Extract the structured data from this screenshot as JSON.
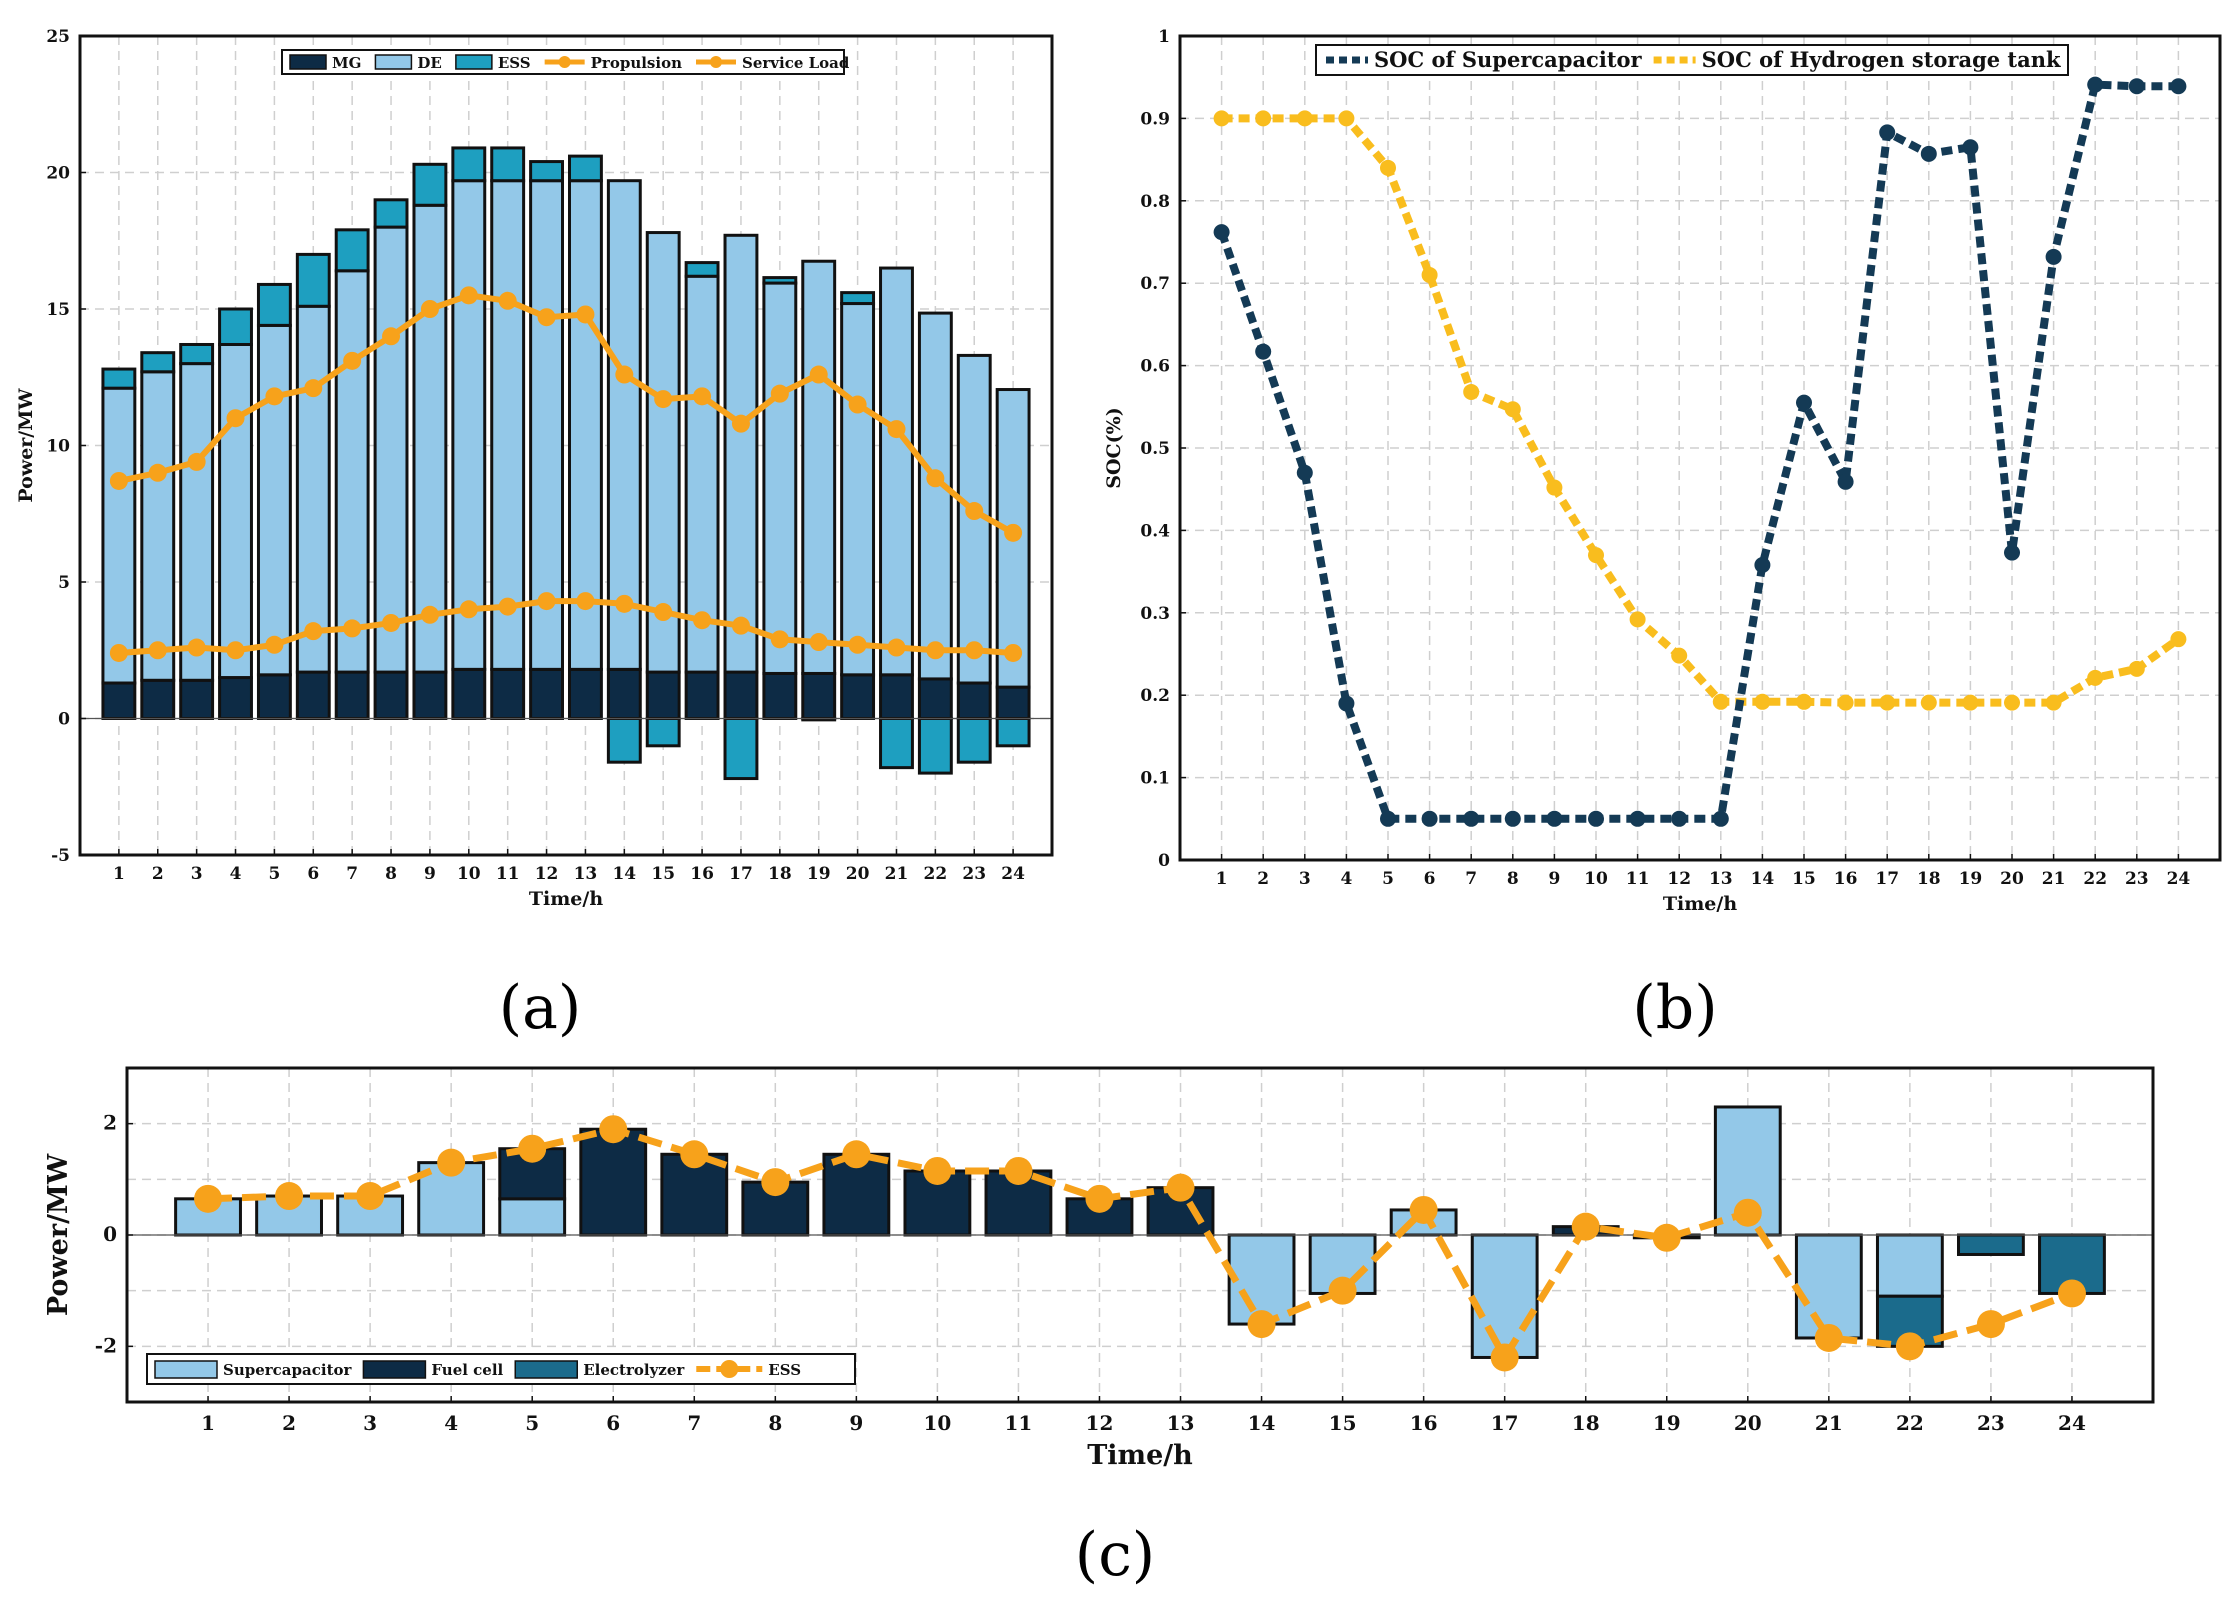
{
  "colors": {
    "mg": "#0d2b45",
    "de": "#93c8e8",
    "ess": "#1e9fc0",
    "orange": "#f7a21b",
    "soc_sc": "#143a55",
    "soc_h2": "#f9bd1e",
    "supercap": "#93c8e8",
    "fuelcell": "#0d2b45",
    "electrolyzer": "#1b6b8c"
  },
  "chart_data": [
    {
      "id": "a",
      "panel_label": "(a)",
      "type": "bar",
      "stacked": true,
      "xlabel": "Time/h",
      "ylabel": "Power/MW",
      "ylim": [
        -5,
        25
      ],
      "yticks": [
        -5,
        0,
        5,
        10,
        15,
        20,
        25
      ],
      "categories": [
        "1",
        "2",
        "3",
        "4",
        "5",
        "6",
        "7",
        "8",
        "9",
        "10",
        "11",
        "12",
        "13",
        "14",
        "15",
        "16",
        "17",
        "18",
        "19",
        "20",
        "21",
        "22",
        "23",
        "24"
      ],
      "grid": true,
      "legend_position": "top",
      "series": [
        {
          "name": "MG",
          "kind": "bar",
          "color_key": "mg",
          "values": [
            1.3,
            1.4,
            1.4,
            1.5,
            1.6,
            1.7,
            1.7,
            1.7,
            1.7,
            1.8,
            1.8,
            1.8,
            1.8,
            1.8,
            1.7,
            1.7,
            1.7,
            1.65,
            1.65,
            1.6,
            1.6,
            1.45,
            1.3,
            1.15
          ]
        },
        {
          "name": "DE",
          "kind": "bar",
          "color_key": "de",
          "values": [
            10.8,
            11.3,
            11.6,
            12.2,
            12.8,
            13.4,
            14.7,
            16.3,
            17.1,
            17.9,
            17.9,
            17.9,
            17.9,
            17.9,
            16.1,
            14.5,
            16.0,
            14.3,
            15.1,
            13.6,
            14.9,
            13.4,
            12.0,
            10.9
          ]
        },
        {
          "name": "ESS",
          "kind": "bar",
          "color_key": "ess",
          "values": [
            0.7,
            0.7,
            0.7,
            1.3,
            1.5,
            1.9,
            1.5,
            1.0,
            1.5,
            1.2,
            1.2,
            0.7,
            0.9,
            -1.6,
            -1.0,
            0.5,
            -2.2,
            0.2,
            -0.05,
            0.4,
            -1.8,
            -2.0,
            -1.6,
            -1.0
          ]
        },
        {
          "name": "Propulsion",
          "kind": "line",
          "color_key": "orange",
          "values": [
            8.7,
            9.0,
            9.4,
            11.0,
            11.8,
            12.1,
            13.1,
            14.0,
            15.0,
            15.5,
            15.3,
            14.7,
            14.8,
            12.6,
            11.7,
            11.8,
            10.8,
            11.9,
            12.6,
            11.5,
            10.6,
            8.8,
            7.6,
            6.8
          ]
        },
        {
          "name": "Service Load",
          "kind": "line",
          "color_key": "orange",
          "values": [
            2.4,
            2.5,
            2.6,
            2.5,
            2.7,
            3.2,
            3.3,
            3.5,
            3.8,
            4.0,
            4.1,
            4.3,
            4.3,
            4.2,
            3.9,
            3.6,
            3.4,
            2.9,
            2.8,
            2.7,
            2.6,
            2.5,
            2.5,
            2.4
          ]
        }
      ]
    },
    {
      "id": "b",
      "panel_label": "(b)",
      "type": "line",
      "xlabel": "Time/h",
      "ylabel": "SOC(%)",
      "ylim": [
        0,
        1
      ],
      "yticks": [
        0,
        0.1,
        0.2,
        0.3,
        0.4,
        0.5,
        0.6,
        0.7,
        0.8,
        0.9,
        1
      ],
      "categories": [
        "1",
        "2",
        "3",
        "4",
        "5",
        "6",
        "7",
        "8",
        "9",
        "10",
        "11",
        "12",
        "13",
        "14",
        "15",
        "16",
        "17",
        "18",
        "19",
        "20",
        "21",
        "22",
        "23",
        "24"
      ],
      "grid": true,
      "legend_position": "top-right",
      "series": [
        {
          "name": "SOC of Supercapacitor",
          "color_key": "soc_sc",
          "values": [
            0.762,
            0.617,
            0.47,
            0.19,
            0.05,
            0.05,
            0.05,
            0.05,
            0.05,
            0.05,
            0.05,
            0.05,
            0.05,
            0.358,
            0.555,
            0.459,
            0.883,
            0.857,
            0.865,
            0.373,
            0.732,
            0.941,
            0.939,
            0.939
          ]
        },
        {
          "name": "SOC of Hydrogen storage tank",
          "color_key": "soc_h2",
          "values": [
            0.9,
            0.9,
            0.9,
            0.9,
            0.84,
            0.71,
            0.568,
            0.547,
            0.452,
            0.37,
            0.292,
            0.248,
            0.192,
            0.192,
            0.192,
            0.191,
            0.191,
            0.191,
            0.191,
            0.191,
            0.191,
            0.221,
            0.232,
            0.268
          ]
        }
      ]
    },
    {
      "id": "c",
      "panel_label": "(c)",
      "type": "bar",
      "stacked": true,
      "xlabel": "Time/h",
      "ylabel": "Power/MW",
      "ylim": [
        -3,
        3
      ],
      "yticks": [
        -2,
        0,
        2
      ],
      "categories": [
        "1",
        "2",
        "3",
        "4",
        "5",
        "6",
        "7",
        "8",
        "9",
        "10",
        "11",
        "12",
        "13",
        "14",
        "15",
        "16",
        "17",
        "18",
        "19",
        "20",
        "21",
        "22",
        "23",
        "24"
      ],
      "grid": true,
      "legend_position": "bottom-left",
      "series": [
        {
          "name": "Supercapacitor",
          "kind": "bar",
          "color_key": "supercap",
          "values": [
            0.65,
            0.7,
            0.7,
            1.3,
            0.65,
            0,
            0,
            0,
            0,
            0,
            0,
            0,
            0,
            -1.6,
            -1.05,
            0.45,
            -2.2,
            0,
            -0.05,
            2.3,
            -1.85,
            -1.1,
            0,
            0
          ]
        },
        {
          "name": "Fuel cell",
          "kind": "bar",
          "color_key": "fuelcell",
          "values": [
            0,
            0,
            0,
            0,
            0.9,
            1.9,
            1.45,
            0.95,
            1.45,
            1.15,
            1.15,
            0.65,
            0.85,
            0,
            0,
            0,
            0,
            0.15,
            0,
            0,
            0,
            0,
            0,
            0
          ]
        },
        {
          "name": "Electrolyzer",
          "kind": "bar",
          "color_key": "electrolyzer",
          "values": [
            0,
            0,
            0,
            0,
            0,
            0,
            0,
            0,
            0,
            0,
            0,
            0,
            0,
            0,
            0,
            0,
            0,
            0,
            0,
            0,
            0,
            -0.9,
            -0.35,
            -1.05
          ]
        },
        {
          "name": "ESS",
          "kind": "line",
          "color_key": "orange",
          "values": [
            0.65,
            0.7,
            0.7,
            1.3,
            1.55,
            1.9,
            1.45,
            0.95,
            1.45,
            1.15,
            1.15,
            0.65,
            0.85,
            -1.6,
            -1.0,
            0.45,
            -2.2,
            0.15,
            -0.05,
            0.4,
            -1.85,
            -2.0,
            -1.6,
            -1.05
          ]
        }
      ]
    }
  ]
}
